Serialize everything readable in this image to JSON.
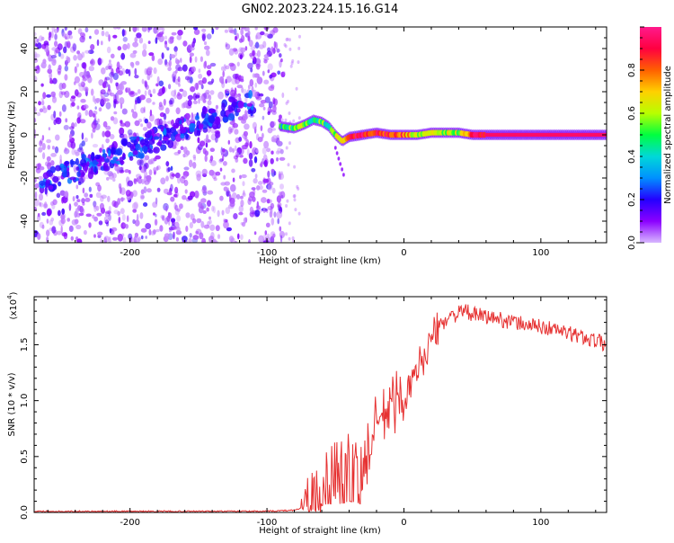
{
  "title": "GN02.2023.224.15.16.G14",
  "colors": {
    "spectro_bg_points": "#8a3cf0",
    "spectro_band": "#4a18f0",
    "snr_line": "#e63232",
    "axis": "#000000"
  },
  "colorbar": {
    "label": "Normalized spectral amplitude",
    "ticks": [
      "0.0",
      "0.2",
      "0.4",
      "0.6",
      "0.8"
    ],
    "tick_values": [
      0.0,
      0.2,
      0.4,
      0.6,
      0.8
    ],
    "range": [
      0,
      1
    ],
    "stops": [
      "#d8b8ff",
      "#8b00ff",
      "#2400ff",
      "#0090ff",
      "#00d8d8",
      "#00ff40",
      "#b8ff00",
      "#ffd000",
      "#ff6000",
      "#ff0040",
      "#ff1a8c"
    ]
  },
  "chart_data": [
    {
      "type": "heatmap",
      "panel": "spectrogram",
      "xlabel": "Height of straight line (km)",
      "ylabel": "Frequency (Hz)",
      "xlim": [
        -270,
        148
      ],
      "ylim": [
        -50,
        50
      ],
      "xticks": [
        -200,
        -100,
        0,
        100
      ],
      "xtick_labels": [
        "-200",
        "-100",
        "0",
        "100"
      ],
      "yticks": [
        -40,
        -20,
        0,
        20,
        40
      ],
      "ytick_labels": [
        "-40",
        "-20",
        "0",
        "20",
        "40"
      ],
      "noise_region_x": [
        -270,
        -88
      ],
      "diagonal_band": {
        "x": [
          -265,
          -220,
          -180,
          -140,
          -110
        ],
        "y": [
          -22,
          -12,
          -2,
          8,
          16
        ]
      },
      "signal_track": {
        "x": [
          -90,
          -80,
          -72,
          -66,
          -60,
          -55,
          -50,
          -45,
          -40,
          -30,
          -20,
          -10,
          0,
          10,
          20,
          30,
          40,
          50,
          60,
          80,
          100,
          120,
          148
        ],
        "y": [
          4,
          3,
          5,
          7,
          6,
          4,
          0,
          -3,
          -1,
          0,
          1,
          0,
          0,
          0,
          1,
          1,
          1,
          0,
          0,
          0,
          0,
          0,
          0
        ],
        "amplitude": [
          0.4,
          0.55,
          0.55,
          0.5,
          0.5,
          0.45,
          0.55,
          0.7,
          0.9,
          0.9,
          0.9,
          0.85,
          0.8,
          0.6,
          0.55,
          0.6,
          0.6,
          0.9,
          0.95,
          0.95,
          0.95,
          0.95,
          0.95
        ]
      },
      "grid": false
    },
    {
      "type": "line",
      "panel": "snr",
      "xlabel": "Height of straight line (km)",
      "ylabel": "SNR (10 * v/v)",
      "y_exponent_label": "(x10",
      "y_exponent_power": "4",
      "y_exponent_close": ")",
      "xlim": [
        -270,
        148
      ],
      "ylim": [
        0,
        1.93
      ],
      "xticks": [
        -200,
        -100,
        0,
        100
      ],
      "xtick_labels": [
        "-200",
        "-100",
        "0",
        "100"
      ],
      "yticks": [
        0.0,
        0.5,
        1.0,
        1.5
      ],
      "ytick_labels": [
        "0.0",
        "0.5",
        "1.0",
        "1.5"
      ],
      "series": [
        {
          "x": [
            -270,
            -200,
            -100,
            -80,
            -70,
            -65,
            -60,
            -55,
            -50,
            -45,
            -40,
            -35,
            -30,
            -25,
            -20,
            -15,
            -10,
            -5,
            0,
            5,
            10,
            15,
            20,
            25,
            30,
            35,
            40,
            45,
            50,
            60,
            70,
            80,
            90,
            100,
            110,
            120,
            130,
            140,
            148
          ],
          "y": [
            0.01,
            0.01,
            0.01,
            0.02,
            0.06,
            0.15,
            0.3,
            0.4,
            0.35,
            0.4,
            0.5,
            0.45,
            0.35,
            0.6,
            0.8,
            0.85,
            0.95,
            1.0,
            1.05,
            1.1,
            1.3,
            1.4,
            1.55,
            1.65,
            1.72,
            1.76,
            1.78,
            1.8,
            1.77,
            1.75,
            1.73,
            1.7,
            1.68,
            1.66,
            1.64,
            1.6,
            1.57,
            1.54,
            1.5
          ]
        }
      ],
      "grid": false
    }
  ]
}
